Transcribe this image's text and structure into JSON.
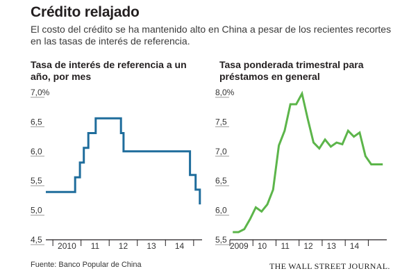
{
  "header": {
    "title": "Crédito relajado",
    "subtitle": "El costo del crédito se ha mantenido alto en China a pesar de los recientes recortes en las tasas de interés de referencia."
  },
  "chart_data": [
    {
      "type": "line",
      "title": "Tasa de interés de referencia a un año, por mes",
      "xlabel": "",
      "ylabel": "",
      "ylim": [
        4.5,
        7.0
      ],
      "xlim": [
        2009.75,
        2015.3
      ],
      "yticks": [
        "7,0%",
        "6,5",
        "6,0",
        "5,5",
        "5,0",
        "4,5"
      ],
      "ytick_values": [
        7.0,
        6.5,
        6.0,
        5.5,
        5.0,
        4.5
      ],
      "xticks": [
        "2010",
        "11",
        "12",
        "13",
        "14"
      ],
      "xtick_positions": [
        2010.5,
        2011.5,
        2012.5,
        2013.5,
        2014.5
      ],
      "x_boundaries": [
        2010,
        2011,
        2012,
        2013,
        2014,
        2015
      ],
      "grid": false,
      "color": "#1f6d9c",
      "series": [
        {
          "x": [
            2009.75,
            2010.79,
            2010.79,
            2010.96,
            2010.96,
            2011.1,
            2011.1,
            2011.26,
            2011.26,
            2011.52,
            2011.52,
            2012.42,
            2012.42,
            2012.51,
            2012.51,
            2014.87,
            2014.87,
            2015.07,
            2015.07,
            2015.22,
            2015.22
          ],
          "values": [
            5.31,
            5.31,
            5.56,
            5.56,
            5.81,
            5.81,
            6.06,
            6.06,
            6.31,
            6.31,
            6.56,
            6.56,
            6.31,
            6.31,
            6.0,
            6.0,
            5.6,
            5.6,
            5.35,
            5.35,
            5.1
          ]
        }
      ]
    },
    {
      "type": "line",
      "title": "Tasa ponderada trimestral para préstamos en general",
      "xlabel": "",
      "ylabel": "",
      "ylim": [
        5.5,
        8.0
      ],
      "xlim": [
        2009.0,
        2015.8
      ],
      "yticks": [
        "8,0%",
        "7,5",
        "7,0",
        "6,5",
        "6,0",
        "5,5"
      ],
      "ytick_values": [
        8.0,
        7.5,
        7.0,
        6.5,
        6.0,
        5.5
      ],
      "xticks": [
        "2009",
        "10",
        "11",
        "12",
        "13",
        "14"
      ],
      "xtick_positions": [
        2009.4,
        2010.4,
        2011.4,
        2012.4,
        2013.4,
        2014.4
      ],
      "x_boundaries": [
        2009,
        2010,
        2011,
        2012,
        2013,
        2014,
        2015
      ],
      "grid": false,
      "color": "#5cb54a",
      "series": [
        {
          "x": [
            2009.125,
            2009.375,
            2009.625,
            2009.875,
            2010.125,
            2010.375,
            2010.625,
            2010.875,
            2011.125,
            2011.375,
            2011.625,
            2011.875,
            2012.125,
            2012.375,
            2012.625,
            2012.875,
            2013.125,
            2013.375,
            2013.625,
            2013.875,
            2014.125,
            2014.375,
            2014.625,
            2014.875,
            2015.125,
            2015.375,
            2015.625
          ],
          "values": [
            5.63,
            5.63,
            5.68,
            5.85,
            6.05,
            5.98,
            6.1,
            6.35,
            7.1,
            7.35,
            7.8,
            7.8,
            7.98,
            7.55,
            7.15,
            7.05,
            7.2,
            7.08,
            7.15,
            7.12,
            7.35,
            7.25,
            7.32,
            6.92,
            6.78,
            6.78,
            6.78
          ]
        }
      ]
    }
  ],
  "footer": {
    "source": "Fuente: Banco Popular de China",
    "logo": "THE WALL STREET JOURNAL."
  }
}
